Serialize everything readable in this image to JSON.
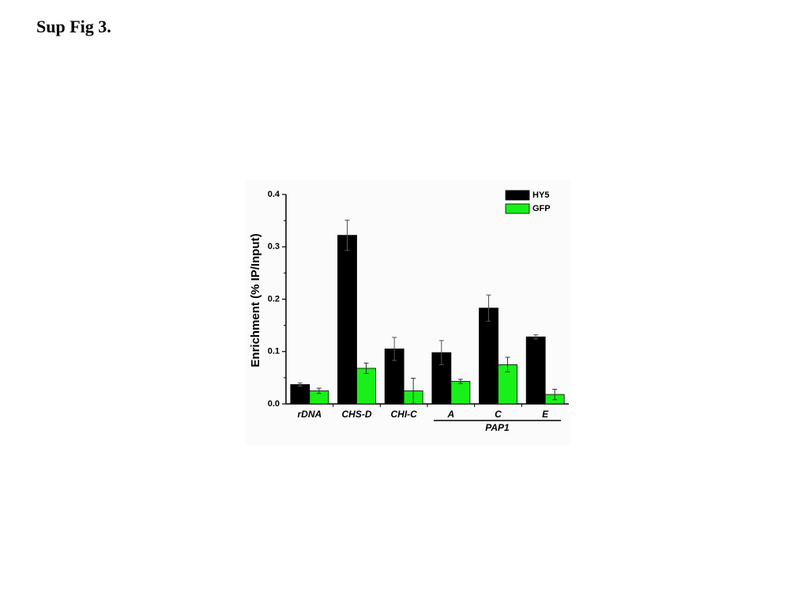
{
  "page_title": "Sup Fig 3.",
  "chart_data": {
    "type": "bar",
    "ylabel": "Enrichment  (% IP/Input)",
    "categories": [
      "rDNA",
      "CHS-D",
      "CHI-C",
      "A",
      "C",
      "E"
    ],
    "group_label": "PAP1",
    "series": [
      {
        "name": "HY5",
        "color": "#000000",
        "values": [
          0.037,
          0.322,
          0.105,
          0.098,
          0.183,
          0.128
        ],
        "errors": [
          0.003,
          0.029,
          0.022,
          0.023,
          0.025,
          0.004
        ]
      },
      {
        "name": "GFP",
        "color": "#19f019",
        "values": [
          0.025,
          0.068,
          0.025,
          0.043,
          0.075,
          0.018
        ],
        "errors": [
          0.005,
          0.01,
          0.024,
          0.004,
          0.014,
          0.01
        ]
      }
    ],
    "ylim": [
      0,
      0.4
    ],
    "yticks": [
      {
        "value": 0,
        "label": "0.0"
      },
      0.1,
      0.2,
      0.3,
      0.4
    ],
    "legend": "upper right"
  }
}
